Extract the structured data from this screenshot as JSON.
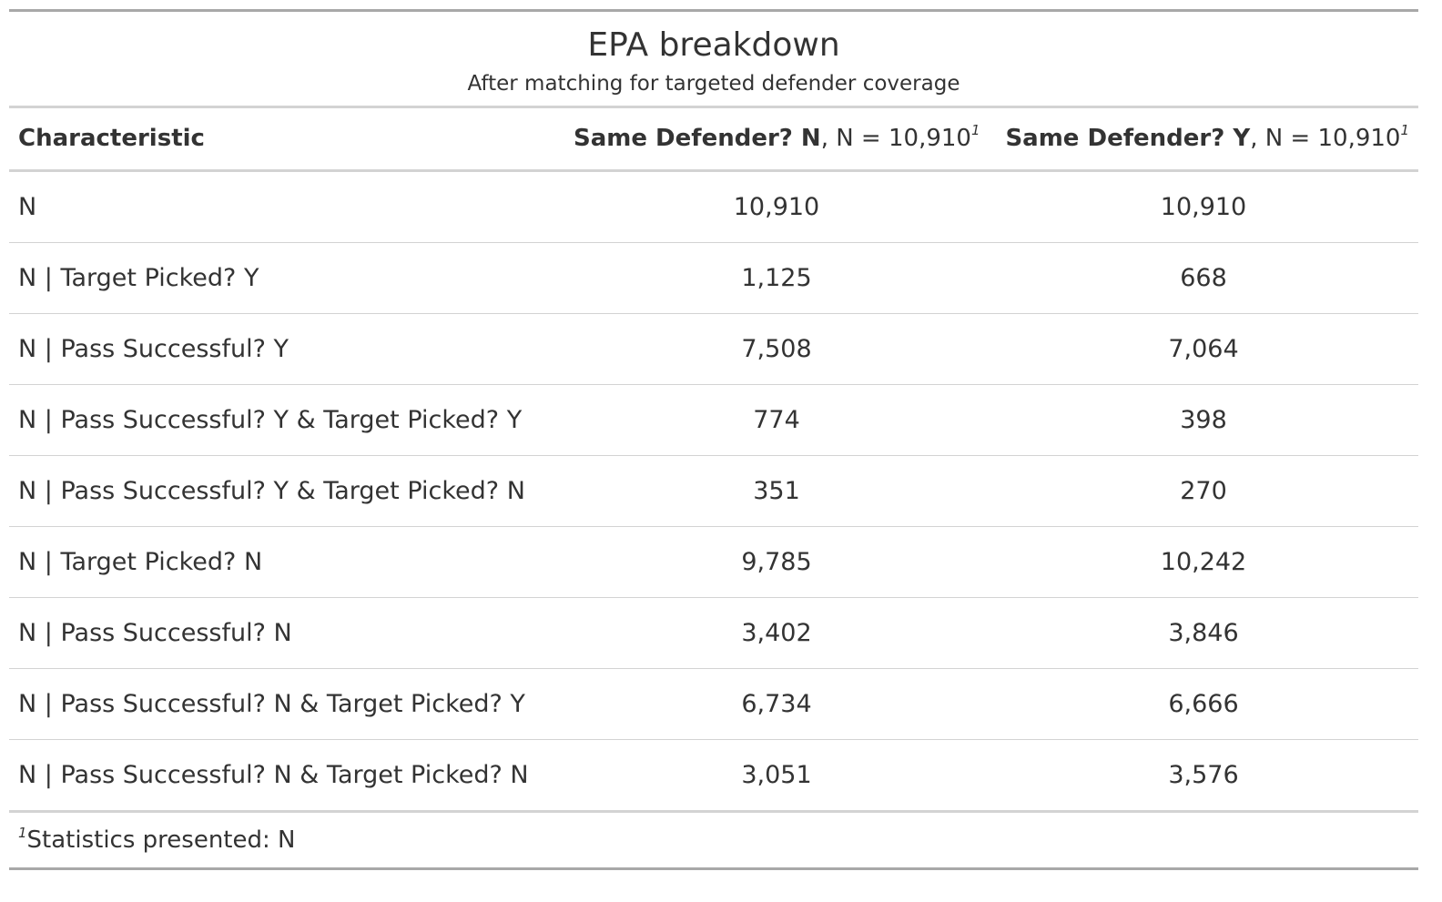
{
  "table": {
    "title": "EPA breakdown",
    "subtitle": "After matching for targeted defender coverage",
    "columns": {
      "characteristic": "Characteristic",
      "col_n": {
        "label_bold": "Same Defender? N",
        "label_rest": ", N = 10,910",
        "footnote_mark": "1"
      },
      "col_y": {
        "label_bold": "Same Defender? Y",
        "label_rest": ", N = 10,910",
        "footnote_mark": "1"
      }
    },
    "rows": [
      {
        "label": "N",
        "n": "10,910",
        "y": "10,910"
      },
      {
        "label": "N | Target Picked? Y",
        "n": "1,125",
        "y": "668"
      },
      {
        "label": "N | Pass Successful? Y",
        "n": "7,508",
        "y": "7,064"
      },
      {
        "label": "N | Pass Successful? Y & Target Picked? Y",
        "n": "774",
        "y": "398"
      },
      {
        "label": "N | Pass Successful? Y & Target Picked? N",
        "n": "351",
        "y": "270"
      },
      {
        "label": "N | Target Picked? N",
        "n": "9,785",
        "y": "10,242"
      },
      {
        "label": "N | Pass Successful? N",
        "n": "3,402",
        "y": "3,846"
      },
      {
        "label": "N | Pass Successful? N & Target Picked? Y",
        "n": "6,734",
        "y": "6,666"
      },
      {
        "label": "N | Pass Successful? N & Target Picked? N",
        "n": "3,051",
        "y": "3,576"
      }
    ],
    "footnote": {
      "mark": "1",
      "text": "Statistics presented: N"
    }
  }
}
